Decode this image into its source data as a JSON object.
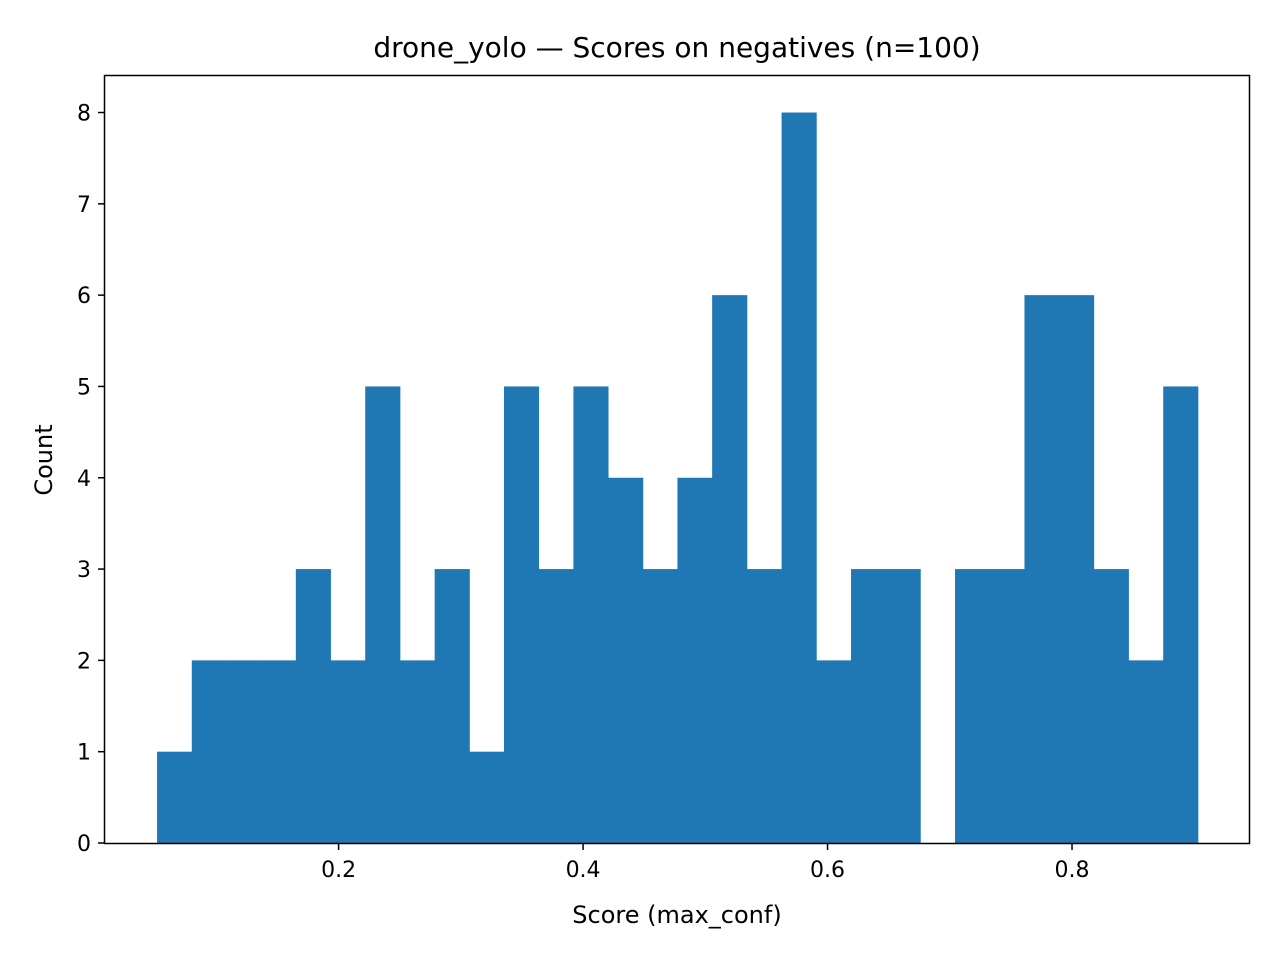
{
  "chart_data": {
    "type": "bar",
    "title": "drone_yolo — Scores on negatives (n=100)",
    "xlabel": "Score (max_conf)",
    "ylabel": "Count",
    "bin_edges": [
      0.0515,
      0.0799,
      0.1083,
      0.1367,
      0.165,
      0.1934,
      0.2218,
      0.2502,
      0.2786,
      0.307,
      0.3353,
      0.3637,
      0.3921,
      0.4205,
      0.4489,
      0.4772,
      0.5056,
      0.534,
      0.5624,
      0.5908,
      0.6192,
      0.6475,
      0.6759,
      0.7043,
      0.7327,
      0.7611,
      0.7894,
      0.8178,
      0.8462,
      0.8746,
      0.903
    ],
    "values": [
      1,
      2,
      2,
      2,
      3,
      2,
      5,
      2,
      3,
      1,
      5,
      3,
      5,
      4,
      3,
      4,
      6,
      3,
      8,
      2,
      3,
      3,
      0,
      3,
      3,
      6,
      6,
      3,
      2,
      5
    ],
    "xlim": [
      0.0089,
      0.9456
    ],
    "ylim": [
      0,
      8.4
    ],
    "xticks": [
      0.2,
      0.4,
      0.6,
      0.8
    ],
    "xtick_labels": [
      "0.2",
      "0.4",
      "0.6",
      "0.8"
    ],
    "yticks": [
      0,
      1,
      2,
      3,
      4,
      5,
      6,
      7,
      8
    ],
    "ytick_labels": [
      "0",
      "1",
      "2",
      "3",
      "4",
      "5",
      "6",
      "7",
      "8"
    ],
    "bar_color": "#1f77b4",
    "grid": false,
    "legend": "none"
  }
}
